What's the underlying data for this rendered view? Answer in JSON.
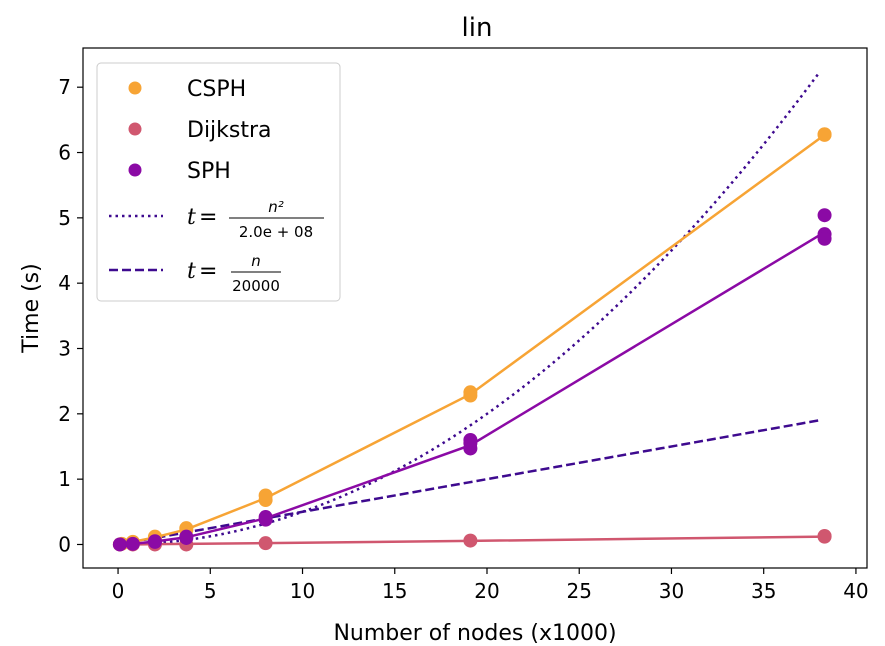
{
  "chart_data": {
    "type": "line",
    "title": "lin",
    "xlabel": "Number of nodes (x1000)",
    "ylabel": "Time (s)",
    "xlim": [
      -1.9,
      40.6
    ],
    "ylim": [
      -0.36,
      7.6
    ],
    "xticks": [
      0,
      5,
      10,
      15,
      20,
      25,
      30,
      35,
      40
    ],
    "yticks": [
      0,
      1,
      2,
      3,
      4,
      5,
      6,
      7
    ],
    "grid": false,
    "legend_position": "top-left",
    "series": [
      {
        "name": "CSPH",
        "color": "#f7a435",
        "marker": "circle",
        "points": [
          [
            0.1,
            0.0
          ],
          [
            0.2,
            0.01
          ],
          [
            0.8,
            0.04
          ],
          [
            0.8,
            0.03
          ],
          [
            2.0,
            0.1
          ],
          [
            2.0,
            0.12
          ],
          [
            3.7,
            0.22
          ],
          [
            3.7,
            0.25
          ],
          [
            8.0,
            0.68
          ],
          [
            8.0,
            0.75
          ],
          [
            19.1,
            2.28
          ],
          [
            19.1,
            2.33
          ],
          [
            38.3,
            6.27
          ],
          [
            38.3,
            6.28
          ]
        ],
        "line": [
          [
            0,
            0
          ],
          [
            0.8,
            0.04
          ],
          [
            2.0,
            0.11
          ],
          [
            3.7,
            0.23
          ],
          [
            8.0,
            0.71
          ],
          [
            19.1,
            2.3
          ],
          [
            38.3,
            6.27
          ]
        ]
      },
      {
        "name": "Dijkstra",
        "color": "#d0576f",
        "marker": "circle",
        "points": [
          [
            0.1,
            0.0
          ],
          [
            0.8,
            0.0
          ],
          [
            2.0,
            0.0
          ],
          [
            3.7,
            0.0
          ],
          [
            8.0,
            0.02
          ],
          [
            19.1,
            0.06
          ],
          [
            38.3,
            0.12
          ],
          [
            38.3,
            0.13
          ]
        ],
        "line": [
          [
            0,
            0
          ],
          [
            0.8,
            0.0
          ],
          [
            2.0,
            0.005
          ],
          [
            3.7,
            0.01
          ],
          [
            8.0,
            0.02
          ],
          [
            19.1,
            0.055
          ],
          [
            38.3,
            0.12
          ]
        ]
      },
      {
        "name": "SPH",
        "color": "#8b0aa5",
        "marker": "circle",
        "points": [
          [
            0.1,
            0.0
          ],
          [
            0.8,
            0.01
          ],
          [
            2.0,
            0.04
          ],
          [
            2.0,
            0.05
          ],
          [
            3.7,
            0.1
          ],
          [
            3.7,
            0.12
          ],
          [
            8.0,
            0.38
          ],
          [
            8.0,
            0.42
          ],
          [
            19.1,
            1.47
          ],
          [
            19.1,
            1.55
          ],
          [
            19.1,
            1.6
          ],
          [
            38.3,
            5.04
          ],
          [
            38.3,
            4.75
          ],
          [
            38.3,
            4.68
          ]
        ],
        "line": [
          [
            0,
            0
          ],
          [
            0.8,
            0.01
          ],
          [
            2.0,
            0.045
          ],
          [
            3.7,
            0.11
          ],
          [
            8.0,
            0.4
          ],
          [
            19.1,
            1.52
          ],
          [
            38.3,
            4.78
          ]
        ]
      }
    ],
    "reference_lines": [
      {
        "legend_prefix": "t",
        "numerator": "n²",
        "denominator": "2.0e + 08",
        "color": "#3e0a8f",
        "dash": "dotted",
        "formula": "n^2/2.0e+08",
        "x_range": [
          0,
          38
        ]
      },
      {
        "legend_prefix": "t",
        "numerator": "n",
        "denominator": "20000",
        "color": "#3e0a8f",
        "dash": "dashed",
        "formula": "n/20000",
        "x_range": [
          0,
          38
        ]
      }
    ]
  }
}
